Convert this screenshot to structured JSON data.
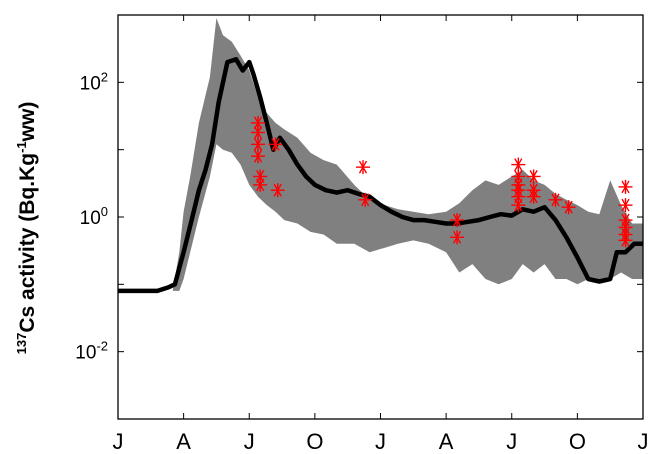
{
  "chart_data": {
    "type": "line",
    "title": "",
    "ylabel": {
      "sup": "137",
      "main": "Cs activity (Bq.Kg",
      "unit_sup": "-1",
      "tail": "ww)"
    },
    "y_scale": "log",
    "ylim": [
      0.001,
      1000
    ],
    "y_ticks": [
      {
        "value": 0.01,
        "base": "10",
        "exp": "-2"
      },
      {
        "value": 1,
        "base": "10",
        "exp": "0"
      },
      {
        "value": 100,
        "base": "10",
        "exp": "2"
      }
    ],
    "xlim": [
      0,
      24
    ],
    "x_ticks": [
      {
        "value": 0,
        "label": "J"
      },
      {
        "value": 3,
        "label": "A"
      },
      {
        "value": 6,
        "label": "J"
      },
      {
        "value": 9,
        "label": "O"
      },
      {
        "value": 12,
        "label": "J"
      },
      {
        "value": 15,
        "label": "A"
      },
      {
        "value": 18,
        "label": "J"
      },
      {
        "value": 21,
        "label": "O"
      },
      {
        "value": 24,
        "label": "J"
      }
    ],
    "grid": false,
    "series": [
      {
        "kind": "band",
        "color": "#808080",
        "x": [
          2.5,
          2.8,
          3.0,
          3.3,
          3.7,
          4.2,
          4.5,
          4.8,
          5.2,
          5.6,
          6.0,
          6.4,
          6.8,
          7.2,
          7.6,
          8.2,
          8.8,
          9.4,
          10.0,
          10.8,
          11.5,
          12.2,
          12.8,
          13.5,
          14.2,
          15.0,
          15.6,
          16.2,
          16.8,
          17.4,
          18.0,
          18.5,
          19.0,
          19.5,
          20.0,
          20.5,
          21.0,
          21.5,
          22.0,
          22.5,
          23.0,
          23.5,
          24.0
        ],
        "upper": [
          0.08,
          0.3,
          1.2,
          4.0,
          25,
          120,
          900,
          500,
          400,
          250,
          150,
          60,
          35,
          25,
          20,
          15,
          9,
          7,
          6,
          3,
          1.8,
          1.5,
          1.3,
          1.2,
          1.1,
          1.2,
          1.6,
          2.5,
          3.5,
          3.0,
          4.0,
          5.0,
          3.5,
          3.0,
          2.2,
          1.8,
          1.5,
          1.2,
          1.1,
          3.5,
          1.5,
          0.8,
          0.8
        ],
        "lower": [
          0.08,
          0.08,
          0.12,
          0.3,
          1.0,
          4.0,
          12,
          10,
          9,
          6,
          3,
          2.0,
          1.5,
          1.2,
          0.9,
          0.8,
          0.6,
          0.55,
          0.4,
          0.4,
          0.3,
          0.35,
          0.4,
          0.45,
          0.4,
          0.3,
          0.15,
          0.2,
          0.12,
          0.1,
          0.12,
          0.2,
          0.15,
          0.2,
          0.12,
          0.12,
          0.1,
          0.12,
          0.12,
          0.12,
          0.15,
          0.12,
          0.12
        ]
      },
      {
        "kind": "line",
        "color": "#000000",
        "x": [
          0,
          0.9,
          1.8,
          2.3,
          2.6,
          3.0,
          3.4,
          3.7,
          4.0,
          4.3,
          4.6,
          5.0,
          5.4,
          5.7,
          6.0,
          6.2,
          6.5,
          6.8,
          7.1,
          7.4,
          7.8,
          8.2,
          8.6,
          9.0,
          9.5,
          10.0,
          10.5,
          11.0,
          11.5,
          12.0,
          12.5,
          13.0,
          13.5,
          14.0,
          14.5,
          15.0,
          15.5,
          16.0,
          16.5,
          17.0,
          17.5,
          18.0,
          18.5,
          19.0,
          19.5,
          20.0,
          20.5,
          21.0,
          21.5,
          22.0,
          22.5,
          22.8,
          23.2,
          23.6,
          24.0
        ],
        "y": [
          0.08,
          0.08,
          0.08,
          0.09,
          0.1,
          0.3,
          1.0,
          2.5,
          5.0,
          12,
          50,
          200,
          220,
          150,
          200,
          130,
          60,
          25,
          10,
          15,
          10,
          6,
          4.0,
          3.0,
          2.5,
          2.3,
          2.5,
          2.2,
          2.0,
          1.5,
          1.2,
          1.0,
          0.9,
          0.9,
          0.85,
          0.8,
          0.8,
          0.85,
          0.9,
          1.0,
          1.1,
          1.05,
          1.3,
          1.2,
          1.4,
          0.9,
          0.5,
          0.25,
          0.12,
          0.11,
          0.12,
          0.3,
          0.3,
          0.4,
          0.4
        ]
      },
      {
        "kind": "scatter",
        "color": "#ff0000",
        "marker": "asterisk",
        "points": [
          [
            6.4,
            25
          ],
          [
            6.4,
            18
          ],
          [
            6.4,
            12
          ],
          [
            6.4,
            8
          ],
          [
            6.5,
            4
          ],
          [
            6.5,
            3
          ],
          [
            7.2,
            12
          ],
          [
            7.3,
            2.5
          ],
          [
            11.2,
            5.5
          ],
          [
            11.3,
            1.8
          ],
          [
            15.5,
            0.9
          ],
          [
            15.5,
            0.5
          ],
          [
            18.3,
            6
          ],
          [
            18.3,
            4
          ],
          [
            18.3,
            3
          ],
          [
            18.3,
            2.5
          ],
          [
            18.3,
            2
          ],
          [
            18.3,
            1.5
          ],
          [
            19.0,
            4
          ],
          [
            19.0,
            2.5
          ],
          [
            19.0,
            2.0
          ],
          [
            20.0,
            1.8
          ],
          [
            20.6,
            1.4
          ],
          [
            23.2,
            2.8
          ],
          [
            23.2,
            1.5
          ],
          [
            23.2,
            0.9
          ],
          [
            23.2,
            0.7
          ],
          [
            23.2,
            0.55
          ],
          [
            23.2,
            0.45
          ]
        ]
      }
    ]
  }
}
